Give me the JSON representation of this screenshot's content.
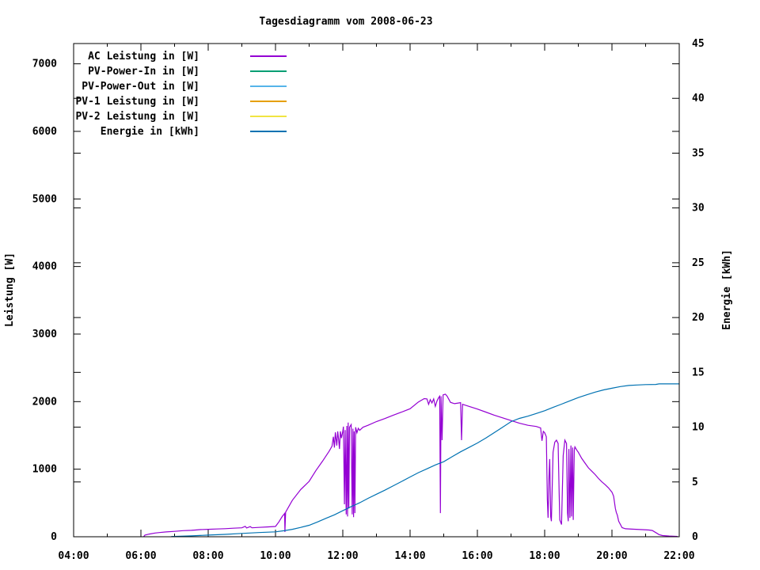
{
  "chart_data": {
    "type": "line",
    "title": "Tagesdiagramm vom 2008-06-23",
    "grid": false,
    "background": "#ffffff",
    "border_color": "#000000",
    "legend_position": "top-left-inside",
    "x": {
      "unit": "time",
      "min_hour": 4,
      "max_hour": 22,
      "tick_hours": [
        4,
        6,
        8,
        10,
        12,
        14,
        16,
        18,
        20,
        22
      ],
      "tick_labels": [
        "04:00",
        "06:00",
        "08:00",
        "10:00",
        "12:00",
        "14:00",
        "16:00",
        "18:00",
        "20:00",
        "22:00"
      ],
      "minor_tick_hours": [
        5,
        7,
        9,
        11,
        13,
        15,
        17,
        19,
        21
      ]
    },
    "y1": {
      "label": "Leistung [W]",
      "min": 0,
      "max": 7300,
      "tick_values": [
        0,
        1000,
        2000,
        3000,
        4000,
        5000,
        6000,
        7000
      ]
    },
    "y2": {
      "label": "Energie [kWh]",
      "min": 0,
      "max": 45,
      "tick_values": [
        0,
        5,
        10,
        15,
        20,
        25,
        30,
        35,
        40,
        45
      ]
    },
    "series": [
      {
        "name": "AC Leistung in [W]",
        "color": "#9400d3",
        "axis": "y1",
        "points": [
          [
            6.08,
            0
          ],
          [
            6.12,
            25
          ],
          [
            6.25,
            40
          ],
          [
            6.42,
            55
          ],
          [
            6.55,
            62
          ],
          [
            6.75,
            72
          ],
          [
            7.0,
            80
          ],
          [
            7.25,
            90
          ],
          [
            7.5,
            95
          ],
          [
            7.62,
            100
          ],
          [
            7.75,
            105
          ],
          [
            8.0,
            110
          ],
          [
            8.25,
            115
          ],
          [
            8.5,
            120
          ],
          [
            8.75,
            126
          ],
          [
            9.0,
            132
          ],
          [
            9.1,
            155
          ],
          [
            9.14,
            130
          ],
          [
            9.25,
            150
          ],
          [
            9.3,
            132
          ],
          [
            9.5,
            138
          ],
          [
            9.75,
            145
          ],
          [
            10.0,
            152
          ],
          [
            10.1,
            220
          ],
          [
            10.2,
            300
          ],
          [
            10.25,
            330
          ],
          [
            10.27,
            345
          ],
          [
            10.28,
            70
          ],
          [
            10.3,
            365
          ],
          [
            10.5,
            540
          ],
          [
            10.75,
            700
          ],
          [
            11.0,
            820
          ],
          [
            11.2,
            980
          ],
          [
            11.4,
            1120
          ],
          [
            11.6,
            1270
          ],
          [
            11.68,
            1340
          ],
          [
            11.72,
            1480
          ],
          [
            11.75,
            1320
          ],
          [
            11.78,
            1545
          ],
          [
            11.82,
            1350
          ],
          [
            11.85,
            1560
          ],
          [
            11.88,
            1420
          ],
          [
            11.9,
            1300
          ],
          [
            11.93,
            1560
          ],
          [
            11.96,
            1460
          ],
          [
            12.0,
            1560
          ],
          [
            12.02,
            1630
          ],
          [
            12.05,
            480
          ],
          [
            12.07,
            1580
          ],
          [
            12.1,
            330
          ],
          [
            12.12,
            1640
          ],
          [
            12.14,
            300
          ],
          [
            12.16,
            1690
          ],
          [
            12.18,
            420
          ],
          [
            12.2,
            1620
          ],
          [
            12.25,
            1660
          ],
          [
            12.28,
            330
          ],
          [
            12.3,
            1600
          ],
          [
            12.32,
            290
          ],
          [
            12.34,
            1560
          ],
          [
            12.36,
            350
          ],
          [
            12.38,
            1620
          ],
          [
            12.42,
            1540
          ],
          [
            12.46,
            1605
          ],
          [
            12.5,
            1575
          ],
          [
            12.6,
            1620
          ],
          [
            12.75,
            1650
          ],
          [
            13.0,
            1705
          ],
          [
            13.25,
            1750
          ],
          [
            13.5,
            1800
          ],
          [
            13.75,
            1845
          ],
          [
            14.0,
            1895
          ],
          [
            14.25,
            1995
          ],
          [
            14.42,
            2045
          ],
          [
            14.5,
            2040
          ],
          [
            14.55,
            1960
          ],
          [
            14.6,
            2030
          ],
          [
            14.65,
            1980
          ],
          [
            14.7,
            2040
          ],
          [
            14.75,
            1930
          ],
          [
            14.8,
            2010
          ],
          [
            14.85,
            2060
          ],
          [
            14.88,
            2080
          ],
          [
            14.9,
            350
          ],
          [
            14.92,
            2080
          ],
          [
            14.95,
            1430
          ],
          [
            14.98,
            2100
          ],
          [
            15.05,
            2110
          ],
          [
            15.1,
            2080
          ],
          [
            15.15,
            2035
          ],
          [
            15.2,
            1990
          ],
          [
            15.32,
            1970
          ],
          [
            15.5,
            1985
          ],
          [
            15.53,
            1430
          ],
          [
            15.56,
            1960
          ],
          [
            15.75,
            1930
          ],
          [
            16.0,
            1890
          ],
          [
            16.25,
            1845
          ],
          [
            16.5,
            1800
          ],
          [
            16.75,
            1760
          ],
          [
            17.0,
            1720
          ],
          [
            17.25,
            1680
          ],
          [
            17.5,
            1650
          ],
          [
            17.75,
            1632
          ],
          [
            17.88,
            1610
          ],
          [
            17.92,
            1420
          ],
          [
            17.96,
            1560
          ],
          [
            18.0,
            1540
          ],
          [
            18.05,
            1480
          ],
          [
            18.08,
            550
          ],
          [
            18.1,
            280
          ],
          [
            18.13,
            900
          ],
          [
            18.15,
            1150
          ],
          [
            18.18,
            300
          ],
          [
            18.2,
            230
          ],
          [
            18.25,
            1250
          ],
          [
            18.3,
            1400
          ],
          [
            18.35,
            1430
          ],
          [
            18.4,
            1380
          ],
          [
            18.43,
            650
          ],
          [
            18.45,
            250
          ],
          [
            18.5,
            180
          ],
          [
            18.55,
            1200
          ],
          [
            18.6,
            1430
          ],
          [
            18.65,
            1380
          ],
          [
            18.68,
            350
          ],
          [
            18.7,
            230
          ],
          [
            18.72,
            1300
          ],
          [
            18.75,
            280
          ],
          [
            18.78,
            1350
          ],
          [
            18.8,
            300
          ],
          [
            18.83,
            1320
          ],
          [
            18.85,
            250
          ],
          [
            18.88,
            1280
          ],
          [
            18.9,
            1330
          ],
          [
            18.95,
            1285
          ],
          [
            19.0,
            1250
          ],
          [
            19.1,
            1160
          ],
          [
            19.2,
            1090
          ],
          [
            19.3,
            1020
          ],
          [
            19.4,
            970
          ],
          [
            19.5,
            920
          ],
          [
            19.6,
            862
          ],
          [
            19.7,
            812
          ],
          [
            19.8,
            770
          ],
          [
            19.9,
            722
          ],
          [
            20.0,
            660
          ],
          [
            20.05,
            600
          ],
          [
            20.1,
            420
          ],
          [
            20.13,
            360
          ],
          [
            20.16,
            320
          ],
          [
            20.2,
            230
          ],
          [
            20.3,
            135
          ],
          [
            20.4,
            118
          ],
          [
            20.6,
            112
          ],
          [
            20.9,
            105
          ],
          [
            21.1,
            100
          ],
          [
            21.2,
            92
          ],
          [
            21.3,
            62
          ],
          [
            21.4,
            32
          ],
          [
            21.5,
            18
          ],
          [
            21.7,
            10
          ],
          [
            21.95,
            5
          ]
        ]
      },
      {
        "name": "PV-Power-In in [W]",
        "color": "#009e73",
        "axis": "y1",
        "points": []
      },
      {
        "name": "PV-Power-Out in [W]",
        "color": "#56b4e9",
        "axis": "y1",
        "points": []
      },
      {
        "name": "PV-1 Leistung in [W]",
        "color": "#e69f00",
        "axis": "y1",
        "points": []
      },
      {
        "name": "PV-2 Leistung in [W]",
        "color": "#f0e442",
        "axis": "y1",
        "points": []
      },
      {
        "name": "Energie in [kWh]",
        "color": "#0072b2",
        "axis": "y2",
        "points": [
          [
            6.9,
            0.02
          ],
          [
            7.5,
            0.08
          ],
          [
            8.0,
            0.15
          ],
          [
            8.5,
            0.22
          ],
          [
            9.0,
            0.3
          ],
          [
            9.5,
            0.38
          ],
          [
            10.0,
            0.45
          ],
          [
            10.25,
            0.55
          ],
          [
            10.5,
            0.68
          ],
          [
            10.75,
            0.85
          ],
          [
            11.0,
            1.05
          ],
          [
            11.25,
            1.35
          ],
          [
            11.5,
            1.68
          ],
          [
            11.75,
            2.0
          ],
          [
            12.0,
            2.38
          ],
          [
            12.25,
            2.75
          ],
          [
            12.5,
            3.1
          ],
          [
            12.75,
            3.5
          ],
          [
            13.0,
            3.88
          ],
          [
            13.25,
            4.25
          ],
          [
            13.5,
            4.65
          ],
          [
            13.75,
            5.05
          ],
          [
            14.0,
            5.45
          ],
          [
            14.25,
            5.85
          ],
          [
            14.5,
            6.2
          ],
          [
            14.75,
            6.55
          ],
          [
            15.0,
            6.85
          ],
          [
            15.25,
            7.3
          ],
          [
            15.5,
            7.75
          ],
          [
            15.75,
            8.15
          ],
          [
            16.0,
            8.55
          ],
          [
            16.25,
            9.0
          ],
          [
            16.5,
            9.5
          ],
          [
            16.75,
            10.0
          ],
          [
            17.0,
            10.5
          ],
          [
            17.25,
            10.8
          ],
          [
            17.5,
            11.0
          ],
          [
            17.75,
            11.25
          ],
          [
            18.0,
            11.5
          ],
          [
            18.25,
            11.8
          ],
          [
            18.5,
            12.1
          ],
          [
            18.75,
            12.4
          ],
          [
            19.0,
            12.7
          ],
          [
            19.25,
            12.95
          ],
          [
            19.5,
            13.2
          ],
          [
            19.75,
            13.4
          ],
          [
            20.0,
            13.55
          ],
          [
            20.25,
            13.7
          ],
          [
            20.5,
            13.8
          ],
          [
            20.75,
            13.85
          ],
          [
            21.0,
            13.88
          ],
          [
            21.3,
            13.9
          ],
          [
            21.4,
            13.95
          ],
          [
            22.0,
            13.95
          ]
        ]
      }
    ]
  }
}
